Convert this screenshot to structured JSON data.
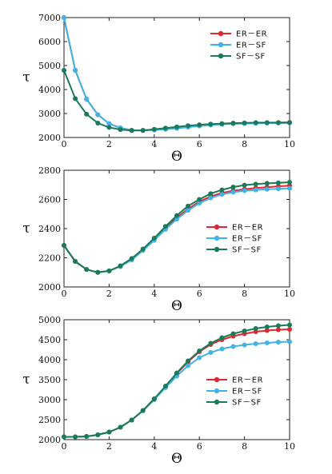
{
  "chart_data": [
    {
      "type": "line",
      "title": "",
      "xlabel": "Θ",
      "ylabel": "τ",
      "xlim": [
        0,
        10
      ],
      "ylim": [
        2000,
        7000
      ],
      "xticks": [
        "0",
        "2",
        "4",
        "6",
        "8",
        "10"
      ],
      "yticks": [
        "2000",
        "3000",
        "4000",
        "5000",
        "6000",
        "7000"
      ],
      "legend_position": "upper-right",
      "x": [
        0,
        0.5,
        1,
        1.5,
        2,
        2.5,
        3,
        3.5,
        4,
        4.5,
        5,
        5.5,
        6,
        6.5,
        7,
        7.5,
        8,
        8.5,
        9,
        9.5,
        10
      ],
      "series": [
        {
          "name": "ER－ER",
          "color": "#e0282e",
          "values": [
            7000,
            4800,
            3600,
            2950,
            2580,
            2400,
            2300,
            2300,
            2330,
            2360,
            2400,
            2450,
            2500,
            2530,
            2560,
            2580,
            2590,
            2600,
            2610,
            2620,
            2630
          ]
        },
        {
          "name": "ER－SF",
          "color": "#40b4e6",
          "values": [
            7000,
            4800,
            3600,
            2950,
            2580,
            2400,
            2300,
            2300,
            2310,
            2340,
            2380,
            2430,
            2480,
            2520,
            2550,
            2570,
            2580,
            2590,
            2600,
            2600,
            2610
          ]
        },
        {
          "name": "SF－SF",
          "color": "#1b7a5a",
          "values": [
            4800,
            3620,
            2970,
            2600,
            2420,
            2330,
            2290,
            2290,
            2340,
            2390,
            2440,
            2490,
            2530,
            2560,
            2580,
            2600,
            2610,
            2620,
            2620,
            2620,
            2620
          ]
        }
      ]
    },
    {
      "type": "line",
      "title": "",
      "xlabel": "Θ",
      "ylabel": "τ",
      "xlim": [
        0,
        10
      ],
      "ylim": [
        2000,
        2800
      ],
      "xticks": [
        "0",
        "2",
        "4",
        "6",
        "8",
        "10"
      ],
      "yticks": [
        "2000",
        "2200",
        "2400",
        "2600",
        "2800"
      ],
      "legend_position": "center-right",
      "x": [
        0,
        0.5,
        1,
        1.5,
        2,
        2.5,
        3,
        3.5,
        4,
        4.5,
        5,
        5.5,
        6,
        6.5,
        7,
        7.5,
        8,
        8.5,
        9,
        9.5,
        10
      ],
      "series": [
        {
          "name": "ER－ER",
          "color": "#e0282e",
          "values": [
            2285,
            2175,
            2120,
            2100,
            2110,
            2140,
            2190,
            2255,
            2330,
            2405,
            2475,
            2535,
            2585,
            2620,
            2645,
            2660,
            2670,
            2678,
            2684,
            2690,
            2695
          ]
        },
        {
          "name": "ER－SF",
          "color": "#40b4e6",
          "values": [
            2285,
            2175,
            2120,
            2100,
            2110,
            2140,
            2185,
            2250,
            2320,
            2395,
            2465,
            2525,
            2575,
            2610,
            2635,
            2650,
            2660,
            2665,
            2670,
            2673,
            2676
          ]
        },
        {
          "name": "SF－SF",
          "color": "#1b7a5a",
          "values": [
            2285,
            2175,
            2120,
            2100,
            2110,
            2145,
            2195,
            2260,
            2335,
            2415,
            2490,
            2555,
            2600,
            2640,
            2665,
            2685,
            2698,
            2705,
            2710,
            2714,
            2718
          ]
        }
      ]
    },
    {
      "type": "line",
      "title": "",
      "xlabel": "Θ",
      "ylabel": "τ",
      "xlim": [
        0,
        10
      ],
      "ylim": [
        2000,
        5000
      ],
      "xticks": [
        "0",
        "2",
        "4",
        "6",
        "8",
        "10"
      ],
      "yticks": [
        "2000",
        "2500",
        "3000",
        "3500",
        "4000",
        "4500",
        "5000"
      ],
      "legend_position": "lower-right",
      "x": [
        0,
        0.5,
        1,
        1.5,
        2,
        2.5,
        3,
        3.5,
        4,
        4.5,
        5,
        5.5,
        6,
        6.5,
        7,
        7.5,
        8,
        8.5,
        9,
        9.5,
        10
      ],
      "series": [
        {
          "name": "ER－ER",
          "color": "#e0282e",
          "values": [
            2070,
            2070,
            2080,
            2120,
            2190,
            2310,
            2490,
            2730,
            3020,
            3330,
            3650,
            3950,
            4200,
            4380,
            4500,
            4590,
            4650,
            4700,
            4730,
            4750,
            4760
          ]
        },
        {
          "name": "ER－SF",
          "color": "#40b4e6",
          "values": [
            2070,
            2070,
            2080,
            2120,
            2190,
            2310,
            2490,
            2720,
            3000,
            3300,
            3590,
            3850,
            4050,
            4180,
            4270,
            4330,
            4370,
            4400,
            4420,
            4440,
            4450
          ]
        },
        {
          "name": "SF－SF",
          "color": "#1b7a5a",
          "values": [
            2070,
            2070,
            2080,
            2120,
            2190,
            2310,
            2490,
            2730,
            3020,
            3340,
            3670,
            3970,
            4220,
            4410,
            4550,
            4650,
            4720,
            4780,
            4820,
            4850,
            4870
          ]
        }
      ]
    }
  ]
}
